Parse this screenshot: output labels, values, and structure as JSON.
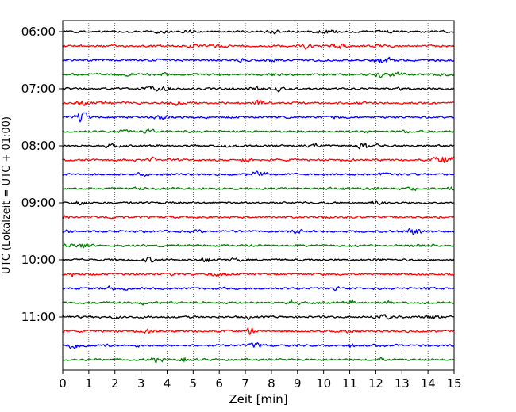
{
  "chart_data": {
    "type": "line",
    "title": "",
    "xlabel": "Zeit  [min]",
    "ylabel": "UTC (Lokalzeit = UTC + 01:00)",
    "xlim": [
      0,
      15
    ],
    "x_ticks": [
      "0",
      "1",
      "2",
      "3",
      "4",
      "5",
      "6",
      "7",
      "8",
      "9",
      "10",
      "11",
      "12",
      "13",
      "14",
      "15"
    ],
    "y_tick_labels": [
      "06:00",
      "07:00",
      "08:00",
      "09:00",
      "10:00",
      "11:00"
    ],
    "grid": "vertical dotted lines at each minute",
    "trace_start": "06:00",
    "trace_interval_minutes": 15,
    "trace_count": 24,
    "trace_colors": [
      "#000000",
      "#ff0000",
      "#0000ff",
      "#007f00"
    ],
    "signal": "seismograph helicorder traces (low-amplitude noise with intermittent small bursts)"
  }
}
